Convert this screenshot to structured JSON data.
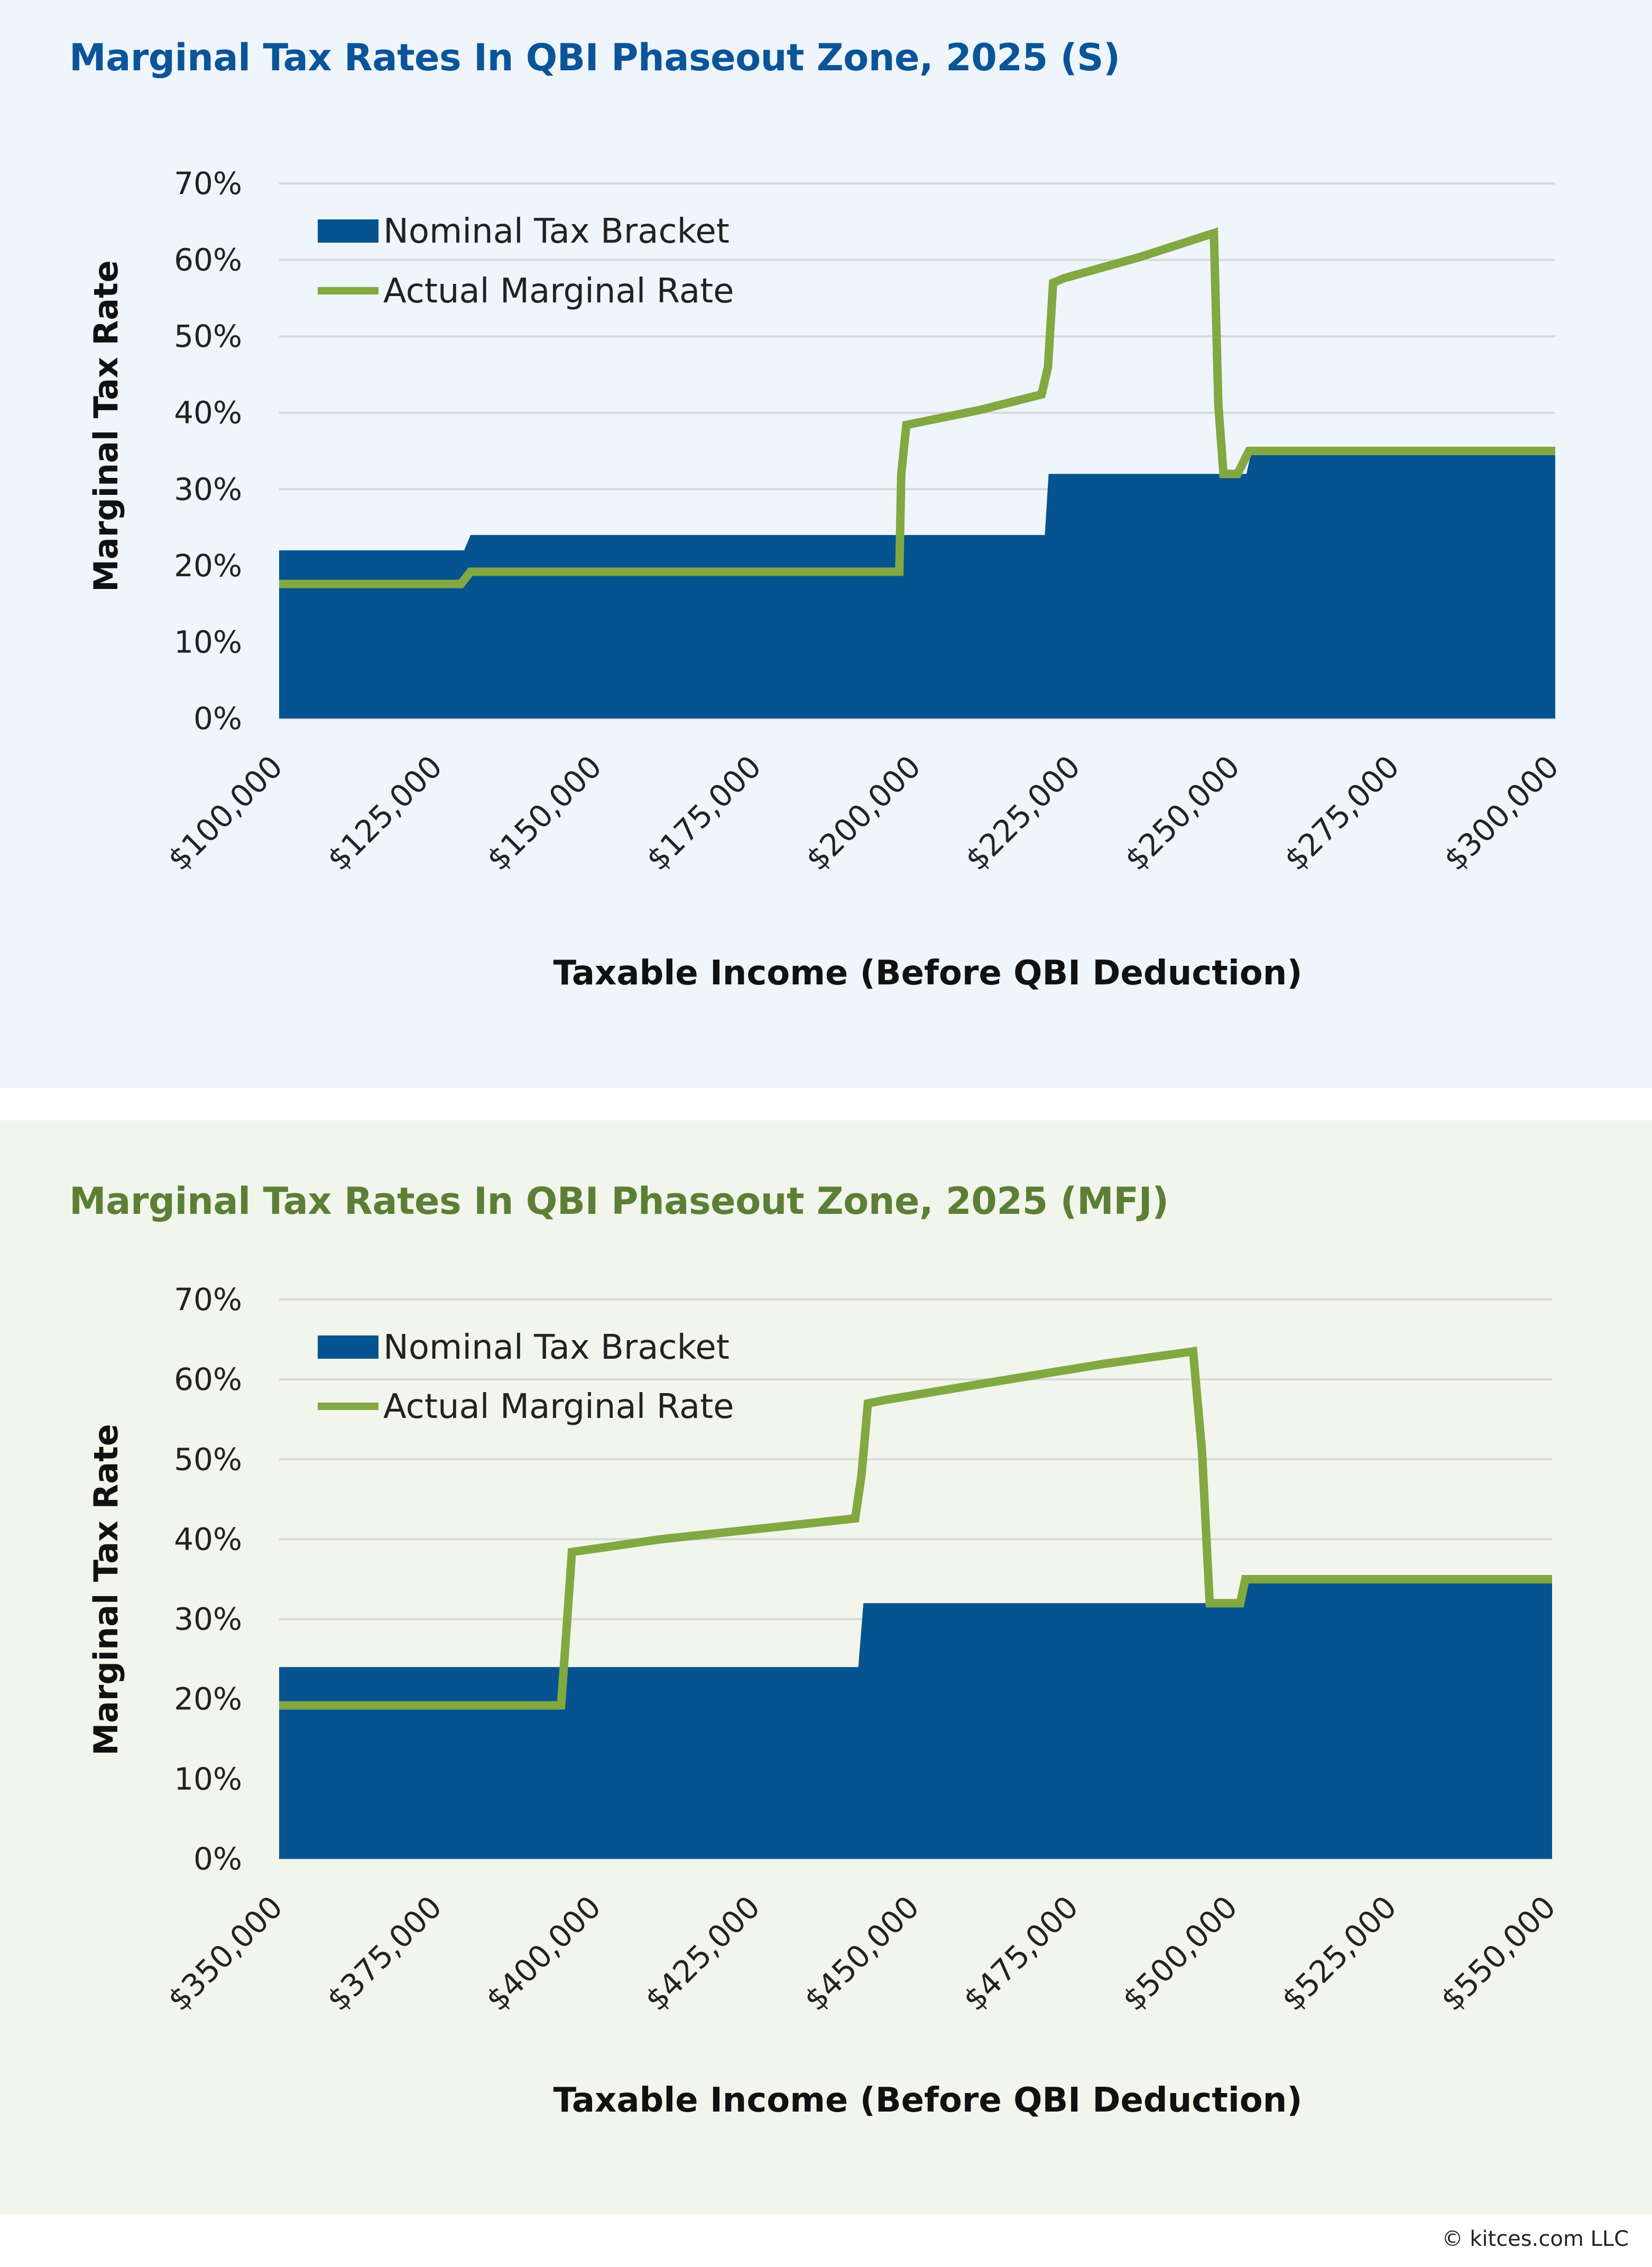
{
  "footer": "© kitces.com LLC",
  "colors": {
    "nominal": "#05548F",
    "actual": "#82A841",
    "grid": "#D9D9D9",
    "top_bg": "#EEF5FB",
    "bottom_bg": "#F2F5EC",
    "top_title": "#0A5499",
    "bottom_title": "#5B7F35"
  },
  "chart_data": [
    {
      "type": "area+line",
      "title": "Marginal Tax Rates In QBI Phaseout Zone, 2025 (S)",
      "xlabel": "Taxable Income (Before QBI Deduction)",
      "ylabel": "Marginal Tax Rate",
      "xlim": [
        100000,
        300000
      ],
      "ylim": [
        0,
        70
      ],
      "xticks": [
        100000,
        125000,
        150000,
        175000,
        200000,
        225000,
        250000,
        275000,
        300000
      ],
      "xtick_labels": [
        "$100,000",
        "$125,000",
        "$150,000",
        "$175,000",
        "$200,000",
        "$225,000",
        "$250,000",
        "$275,000",
        "$300,000"
      ],
      "yticks": [
        0,
        10,
        20,
        30,
        40,
        50,
        60,
        70
      ],
      "ytick_labels": [
        "0%",
        "10%",
        "20%",
        "30%",
        "40%",
        "50%",
        "60%",
        "70%"
      ],
      "grid": true,
      "legend": "top-left",
      "series": [
        {
          "name": "Nominal Tax Bracket",
          "kind": "area",
          "points": [
            [
              100000,
              22
            ],
            [
              129000,
              22
            ],
            [
              130000,
              24
            ],
            [
              220000,
              24
            ],
            [
              220600,
              32
            ],
            [
              251600,
              32
            ],
            [
              252400,
              35
            ],
            [
              300000,
              35
            ]
          ]
        },
        {
          "name": "Actual Marginal Rate",
          "kind": "line",
          "points": [
            [
              100000,
              17.6
            ],
            [
              128500,
              17.6
            ],
            [
              130000,
              19.2
            ],
            [
              197200,
              19.2
            ],
            [
              197500,
              32
            ],
            [
              198300,
              38.4
            ],
            [
              210000,
              40.4
            ],
            [
              219500,
              42.4
            ],
            [
              220500,
              46
            ],
            [
              221300,
              57
            ],
            [
              223000,
              57.6
            ],
            [
              235000,
              60.4
            ],
            [
              246500,
              63.5
            ],
            [
              247200,
              41
            ],
            [
              248000,
              32
            ],
            [
              250200,
              32
            ],
            [
              252000,
              35
            ],
            [
              300000,
              35
            ]
          ]
        }
      ]
    },
    {
      "type": "area+line",
      "title": "Marginal Tax Rates In QBI Phaseout Zone, 2025 (MFJ)",
      "xlabel": "Taxable Income (Before QBI Deduction)",
      "ylabel": "Marginal Tax Rate",
      "xlim": [
        350000,
        550000
      ],
      "ylim": [
        0,
        70
      ],
      "xticks": [
        350000,
        375000,
        400000,
        425000,
        450000,
        475000,
        500000,
        525000,
        550000
      ],
      "xtick_labels": [
        "$350,000",
        "$375,000",
        "$400,000",
        "$425,000",
        "$450,000",
        "$475,000",
        "$500,000",
        "$525,000",
        "$550,000"
      ],
      "yticks": [
        0,
        10,
        20,
        30,
        40,
        50,
        60,
        70
      ],
      "ytick_labels": [
        "0%",
        "10%",
        "20%",
        "30%",
        "40%",
        "50%",
        "60%",
        "70%"
      ],
      "grid": true,
      "legend": "top-left",
      "series": [
        {
          "name": "Nominal Tax Bracket",
          "kind": "area",
          "points": [
            [
              350000,
              24
            ],
            [
              441000,
              24
            ],
            [
              441800,
              32
            ],
            [
              500400,
              32
            ],
            [
              501200,
              35
            ],
            [
              550000,
              35
            ]
          ]
        },
        {
          "name": "Actual Marginal Rate",
          "kind": "line",
          "points": [
            [
              350000,
              19.2
            ],
            [
              394300,
              19.2
            ],
            [
              395000,
              27
            ],
            [
              396000,
              38.4
            ],
            [
              410000,
              40
            ],
            [
              440500,
              42.6
            ],
            [
              441500,
              48
            ],
            [
              442500,
              57
            ],
            [
              445000,
              57.4
            ],
            [
              460000,
              59.4
            ],
            [
              480000,
              62
            ],
            [
              493600,
              63.5
            ],
            [
              495000,
              51
            ],
            [
              496200,
              32
            ],
            [
              501000,
              32
            ],
            [
              501800,
              35
            ],
            [
              550000,
              35
            ]
          ]
        }
      ]
    }
  ]
}
